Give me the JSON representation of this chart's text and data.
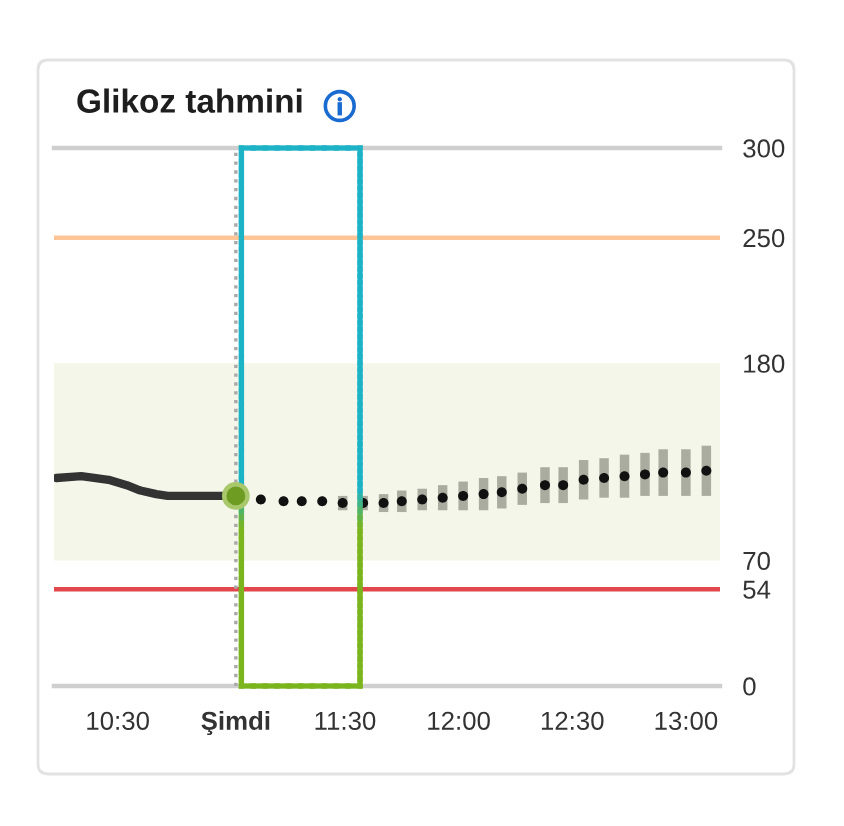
{
  "chart_data": {
    "type": "line",
    "title": "Glikoz tahmini",
    "xlim": [
      10.22,
      13.15
    ],
    "xticks": [
      {
        "value": 10.5,
        "label": "10:30"
      },
      {
        "value": 11.02,
        "label": "Şimdi"
      },
      {
        "value": 11.5,
        "label": "11:30"
      },
      {
        "value": 12,
        "label": "12:00"
      },
      {
        "value": 12.5,
        "label": "12:30"
      },
      {
        "value": 13,
        "label": "13:00"
      }
    ],
    "ylim": [
      0,
      300
    ],
    "yticks": [
      0,
      54,
      70,
      180,
      250,
      300
    ],
    "series": [
      {
        "color": "#333333",
        "line_style": "solid",
        "x": [
          10.23,
          10.34,
          10.46,
          10.54,
          10.6,
          10.67,
          10.72,
          10.84,
          10.98,
          11.02
        ],
        "values": [
          116,
          117,
          115,
          112,
          109,
          107,
          106,
          106,
          106,
          106
        ]
      },
      {
        "type": "scatter",
        "color": "#6e9b22",
        "marker": "circle",
        "x": [
          11.02
        ],
        "values": [
          106
        ]
      },
      {
        "type": "scatter",
        "color": "#111111",
        "marker": "circle",
        "x": [
          11.13,
          11.23,
          11.31,
          11.4,
          11.49,
          11.58,
          11.67,
          11.75,
          11.84,
          11.93,
          12.02,
          12.11,
          12.19,
          12.28,
          12.38,
          12.46,
          12.55,
          12.64,
          12.73,
          12.82,
          12.9,
          13,
          13.09
        ],
        "values": [
          104,
          103,
          103,
          103,
          102,
          102,
          102,
          103,
          104,
          105,
          106,
          107,
          108,
          110,
          112,
          112,
          115,
          116,
          117,
          118,
          119,
          119,
          120
        ],
        "errors": [
          null,
          null,
          null,
          null,
          4,
          4,
          5,
          6,
          6,
          7,
          8,
          9,
          9,
          9,
          10,
          10,
          11,
          11,
          12,
          12,
          13,
          13,
          14
        ]
      }
    ],
    "ref_lines": [
      {
        "axis": "y",
        "value": 250,
        "color": "#ffc597"
      },
      {
        "axis": "y",
        "value": 54,
        "color": "#e2474b"
      },
      {
        "axis": "x",
        "value": 11.02,
        "color": "#a8a8a8",
        "line_style": "dotted"
      }
    ],
    "bands": [
      {
        "axis": "y",
        "from": 70,
        "to": 180,
        "color": "#f3f6e8"
      }
    ]
  }
}
